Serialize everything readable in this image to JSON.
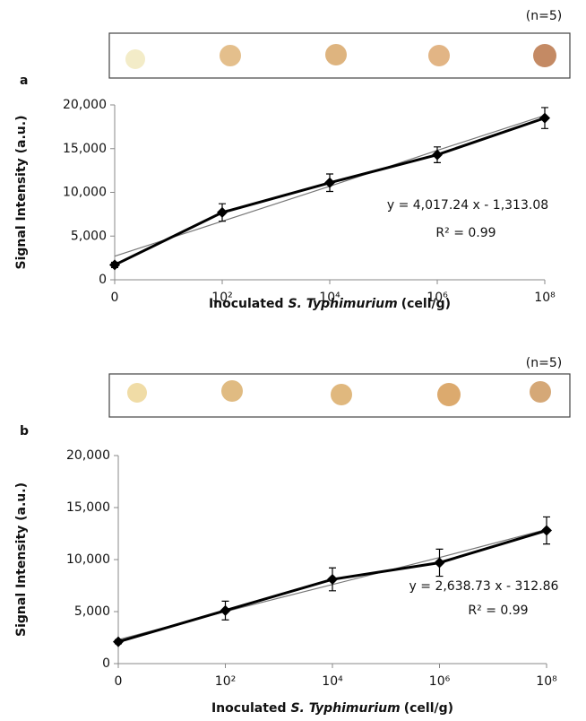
{
  "chart_data": [
    {
      "type": "line",
      "panel_label": "a",
      "note": "(n=5)",
      "categories": [
        "0",
        "10²",
        "10⁴",
        "10⁶",
        "10⁸"
      ],
      "values": [
        1700,
        7700,
        11100,
        14300,
        18500
      ],
      "errors": [
        300,
        1000,
        1000,
        900,
        1200
      ],
      "trendline": [
        2700,
        6700,
        10700,
        14800,
        18800
      ],
      "color": "#000000",
      "trend_color": "#777777",
      "ylim": [
        0,
        20000
      ],
      "yticks": [
        {
          "value": 0,
          "label": "0"
        },
        {
          "value": 5000,
          "label": "5,000"
        },
        {
          "value": 10000,
          "label": "10,000"
        },
        {
          "value": 15000,
          "label": "15,000"
        },
        {
          "value": 20000,
          "label": "20,000"
        }
      ],
      "y_label": "Signal Intensity (a.u.)",
      "x_label": {
        "prefix": "Inoculated",
        "italic": "S. Typhimurium",
        "suffix": "(cell/g)"
      },
      "annotations": [
        "y = 4,017.24 x - 1,313.08",
        "R² = 0.99"
      ]
    },
    {
      "type": "line",
      "panel_label": "b",
      "note": "(n=5)",
      "categories": [
        "0",
        "10²",
        "10⁴",
        "10⁶",
        "10⁸"
      ],
      "values": [
        2100,
        5100,
        8100,
        9700,
        12800
      ],
      "errors": [
        200,
        900,
        1100,
        1300,
        1300
      ],
      "trendline": [
        2300,
        5000,
        7600,
        10200,
        12900
      ],
      "color": "#000000",
      "trend_color": "#777777",
      "ylim": [
        0,
        20000
      ],
      "yticks": [
        {
          "value": 0,
          "label": "0"
        },
        {
          "value": 5000,
          "label": "5,000"
        },
        {
          "value": 10000,
          "label": "10,000"
        },
        {
          "value": 15000,
          "label": "15,000"
        },
        {
          "value": 20000,
          "label": "20,000"
        }
      ],
      "y_label": "Signal Intensity (a.u.)",
      "x_label": {
        "prefix": "Inoculated",
        "italic": "S. Typhimurium",
        "suffix": "(cell/g)"
      },
      "annotations": [
        "y = 2,638.73 x - 312.86",
        "R² = 0.99"
      ]
    }
  ]
}
